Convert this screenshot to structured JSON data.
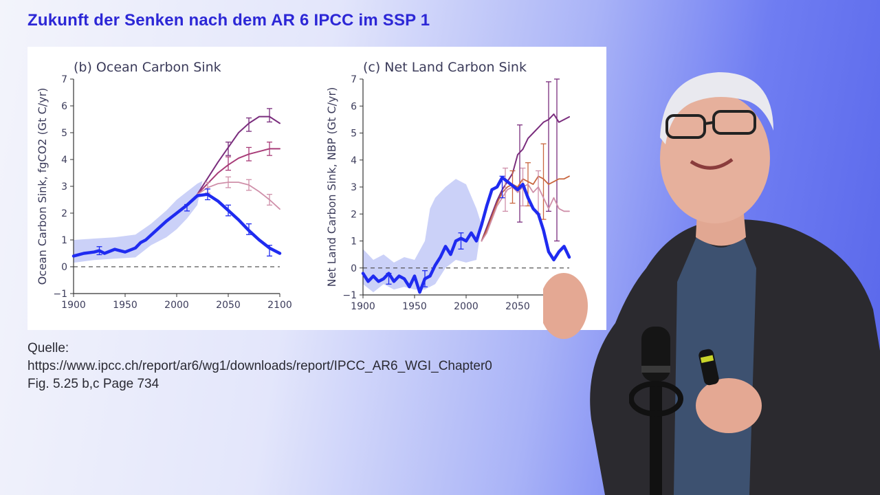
{
  "slide": {
    "title": "Zukunft der Senken nach dem AR 6 IPCC im SSP 1"
  },
  "source": {
    "label": "Quelle:",
    "url": "https://www.ipcc.ch/report/ar6/wg1/downloads/report/IPCC_AR6_WGI_Chapter0",
    "figure_ref": "Fig. 5.25 b,c Page 734"
  },
  "colors": {
    "title": "#2c27d6",
    "historical": "#1f2bf0",
    "uncertainty_band": "#c2c9f7",
    "scenario_dark": "#7a2d7d",
    "scenario_mid": "#a83c78",
    "scenario_light": "#cf8fa9",
    "scenario_orange": "#c8663f"
  },
  "chart_data": [
    {
      "type": "line",
      "title": "(b) Ocean Carbon Sink",
      "ylabel": "Ocean Carbon Sink, fgCO2 (Gt C/yr)",
      "xlabel": "",
      "xlim": [
        1900,
        2100
      ],
      "ylim": [
        -1,
        7
      ],
      "xticks": [
        1900,
        1950,
        2000,
        2050,
        2100
      ],
      "yticks": [
        -1,
        0,
        1,
        2,
        3,
        4,
        5,
        6,
        7
      ],
      "zero_line": "dashed",
      "band": {
        "x": [
          1900,
          1920,
          1940,
          1960,
          1975,
          1990,
          2000,
          2010,
          2020,
          2025,
          2020,
          2010,
          2000,
          1990,
          1975,
          1960,
          1940,
          1920,
          1900
        ],
        "y": [
          1.0,
          1.05,
          1.1,
          1.2,
          1.6,
          2.1,
          2.5,
          2.8,
          3.1,
          3.2,
          2.3,
          1.8,
          1.4,
          1.1,
          0.8,
          0.35,
          0.3,
          0.25,
          0.15
        ]
      },
      "series": [
        {
          "role": "historical",
          "x": [
            1900,
            1910,
            1920,
            1925,
            1930,
            1940,
            1950,
            1960,
            1965,
            1970,
            1980,
            1990,
            2000,
            2010,
            2020,
            2030,
            2040,
            2050,
            2060,
            2070,
            2080,
            2090,
            2100
          ],
          "y": [
            0.4,
            0.5,
            0.55,
            0.6,
            0.5,
            0.65,
            0.55,
            0.7,
            0.9,
            1.0,
            1.35,
            1.7,
            2.0,
            2.3,
            2.65,
            2.7,
            2.45,
            2.1,
            1.75,
            1.35,
            1.0,
            0.7,
            0.5
          ],
          "error_x": [
            1925,
            2010,
            2030,
            2050,
            2070,
            2090
          ],
          "error_y": [
            0.6,
            2.2,
            2.7,
            2.1,
            1.4,
            0.6
          ],
          "error_h": [
            0.15,
            0.12,
            0.2,
            0.2,
            0.2,
            0.2
          ]
        },
        {
          "role": "scenario_dark",
          "x": [
            2020,
            2030,
            2040,
            2050,
            2060,
            2070,
            2080,
            2090,
            2100
          ],
          "y": [
            2.7,
            3.3,
            3.9,
            4.45,
            5.0,
            5.35,
            5.6,
            5.6,
            5.35
          ],
          "error_x": [
            2050,
            2070,
            2090
          ],
          "error_y": [
            4.4,
            5.3,
            5.65
          ],
          "error_h": [
            0.25,
            0.25,
            0.25
          ]
        },
        {
          "role": "scenario_mid",
          "x": [
            2020,
            2030,
            2040,
            2050,
            2060,
            2070,
            2080,
            2090,
            2100
          ],
          "y": [
            2.7,
            3.1,
            3.5,
            3.8,
            4.05,
            4.2,
            4.3,
            4.4,
            4.4
          ],
          "error_x": [
            2050,
            2070,
            2090
          ],
          "error_y": [
            3.85,
            4.2,
            4.4
          ],
          "error_h": [
            0.25,
            0.25,
            0.25
          ]
        },
        {
          "role": "scenario_light",
          "x": [
            2020,
            2030,
            2040,
            2050,
            2060,
            2070,
            2080,
            2090,
            2100
          ],
          "y": [
            2.7,
            2.95,
            3.1,
            3.15,
            3.15,
            3.05,
            2.8,
            2.5,
            2.15
          ],
          "error_x": [
            2030,
            2050,
            2070,
            2090
          ],
          "error_y": [
            2.95,
            3.15,
            3.05,
            2.5
          ],
          "error_h": [
            0.2,
            0.2,
            0.2,
            0.2
          ]
        }
      ]
    },
    {
      "type": "line",
      "title": "(c) Net Land Carbon Sink",
      "ylabel": "Net Land Carbon Sink, NBP (Gt C/yr)",
      "xlabel": "",
      "xlim": [
        1900,
        2100
      ],
      "ylim": [
        -1,
        7
      ],
      "xticks": [
        1900,
        1950,
        2000,
        2050
      ],
      "yticks": [
        -1,
        0,
        1,
        2,
        3,
        4,
        5,
        6,
        7
      ],
      "zero_line": "dashed",
      "band": {
        "x": [
          1900,
          1910,
          1920,
          1930,
          1940,
          1950,
          1960,
          1965,
          1970,
          1980,
          1990,
          2000,
          2010,
          2015,
          2010,
          2000,
          1990,
          1980,
          1970,
          1960,
          1950,
          1940,
          1930,
          1920,
          1910,
          1900
        ],
        "y": [
          0.7,
          0.3,
          0.5,
          0.2,
          0.4,
          0.3,
          1.0,
          2.2,
          2.6,
          3.0,
          3.3,
          3.1,
          2.2,
          1.6,
          0.3,
          0.2,
          0.3,
          0.0,
          -0.6,
          -0.8,
          -0.8,
          -0.7,
          -0.8,
          -0.6,
          -0.9,
          -0.6
        ]
      },
      "series": [
        {
          "role": "historical",
          "x": [
            1900,
            1905,
            1910,
            1915,
            1920,
            1925,
            1930,
            1935,
            1940,
            1945,
            1950,
            1955,
            1960,
            1965,
            1970,
            1975,
            1980,
            1985,
            1990,
            1995,
            2000,
            2005,
            2010,
            2015,
            2020,
            2025,
            2030,
            2035,
            2040,
            2045,
            2050,
            2055,
            2060,
            2065,
            2070,
            2075,
            2080,
            2085,
            2090,
            2095,
            2100
          ],
          "y": [
            -0.2,
            -0.5,
            -0.3,
            -0.5,
            -0.4,
            -0.2,
            -0.5,
            -0.3,
            -0.4,
            -0.7,
            -0.3,
            -0.9,
            -0.4,
            -0.3,
            0.1,
            0.4,
            0.8,
            0.5,
            1.0,
            1.1,
            1.0,
            1.3,
            1.0,
            1.6,
            2.3,
            2.9,
            3.0,
            3.35,
            3.2,
            3.05,
            2.9,
            3.1,
            2.6,
            2.2,
            2.0,
            1.4,
            0.6,
            0.3,
            0.6,
            0.8,
            0.4
          ],
          "error_x": [
            1925,
            1960,
            1995,
            2035
          ],
          "error_y": [
            -0.4,
            -0.4,
            1.0,
            3.0
          ],
          "error_h": [
            0.2,
            0.3,
            0.3,
            0.4
          ]
        },
        {
          "role": "scenario_dark",
          "x": [
            2015,
            2020,
            2025,
            2030,
            2035,
            2040,
            2045,
            2050,
            2055,
            2060,
            2065,
            2070,
            2075,
            2080,
            2085,
            2090,
            2095,
            2100
          ],
          "y": [
            1.0,
            1.5,
            2.0,
            2.5,
            2.9,
            3.2,
            3.5,
            4.2,
            4.4,
            4.8,
            5.0,
            5.2,
            5.4,
            5.5,
            5.7,
            5.4,
            5.5,
            5.6
          ],
          "error_x": [
            2052,
            2080,
            2088
          ],
          "error_y": [
            3.5,
            4.5,
            4.0
          ],
          "error_h": [
            1.8,
            2.4,
            3.0
          ]
        },
        {
          "role": "scenario_orange",
          "x": [
            2015,
            2020,
            2025,
            2030,
            2035,
            2040,
            2045,
            2050,
            2055,
            2060,
            2065,
            2070,
            2075,
            2080,
            2085,
            2090,
            2095,
            2100
          ],
          "y": [
            1.0,
            1.4,
            1.9,
            2.4,
            2.8,
            3.0,
            3.1,
            3.0,
            3.3,
            3.2,
            3.1,
            3.4,
            3.3,
            3.1,
            3.2,
            3.3,
            3.3,
            3.4
          ],
          "error_x": [
            2045,
            2060,
            2075
          ],
          "error_y": [
            3.0,
            3.1,
            3.2
          ],
          "error_h": [
            0.6,
            0.8,
            1.4
          ]
        },
        {
          "role": "scenario_light",
          "x": [
            2015,
            2020,
            2025,
            2030,
            2035,
            2040,
            2045,
            2050,
            2055,
            2060,
            2065,
            2070,
            2075,
            2080,
            2085,
            2090,
            2095,
            2100
          ],
          "y": [
            1.0,
            1.3,
            1.8,
            2.3,
            2.6,
            2.9,
            3.0,
            2.8,
            3.0,
            3.1,
            2.8,
            3.0,
            2.6,
            2.2,
            2.6,
            2.2,
            2.1,
            2.1
          ],
          "error_x": [
            2038,
            2055,
            2070
          ],
          "error_y": [
            2.9,
            3.0,
            2.8
          ],
          "error_h": [
            0.8,
            0.7,
            0.8
          ]
        }
      ]
    }
  ]
}
